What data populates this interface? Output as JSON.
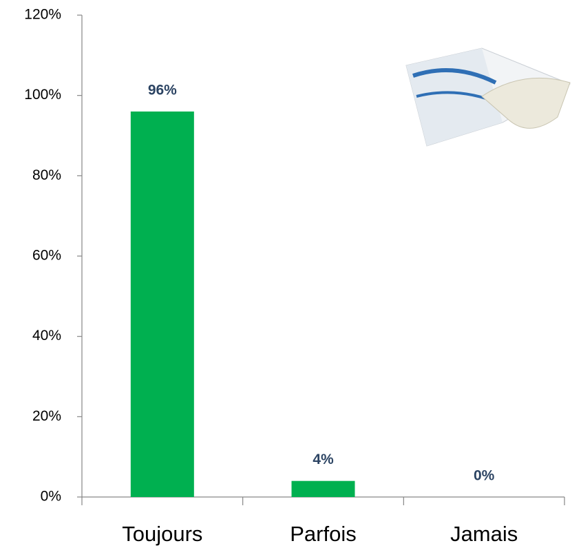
{
  "chart_data": {
    "type": "bar",
    "categories": [
      "Toujours",
      "Parfois",
      "Jamais"
    ],
    "values": [
      96,
      4,
      0
    ],
    "value_labels": [
      "96%",
      "4%",
      "0%"
    ],
    "color": "#00b050",
    "ylim": [
      0,
      120
    ],
    "yticks": [
      {
        "value": 0,
        "label": "0%"
      },
      {
        "value": 20,
        "label": "20%"
      },
      {
        "value": 40,
        "label": "40%"
      },
      {
        "value": 60,
        "label": "60%"
      },
      {
        "value": 80,
        "label": "80%"
      },
      {
        "value": 100,
        "label": "100%"
      },
      {
        "value": 120,
        "label": "120%"
      }
    ],
    "grid": false
  }
}
